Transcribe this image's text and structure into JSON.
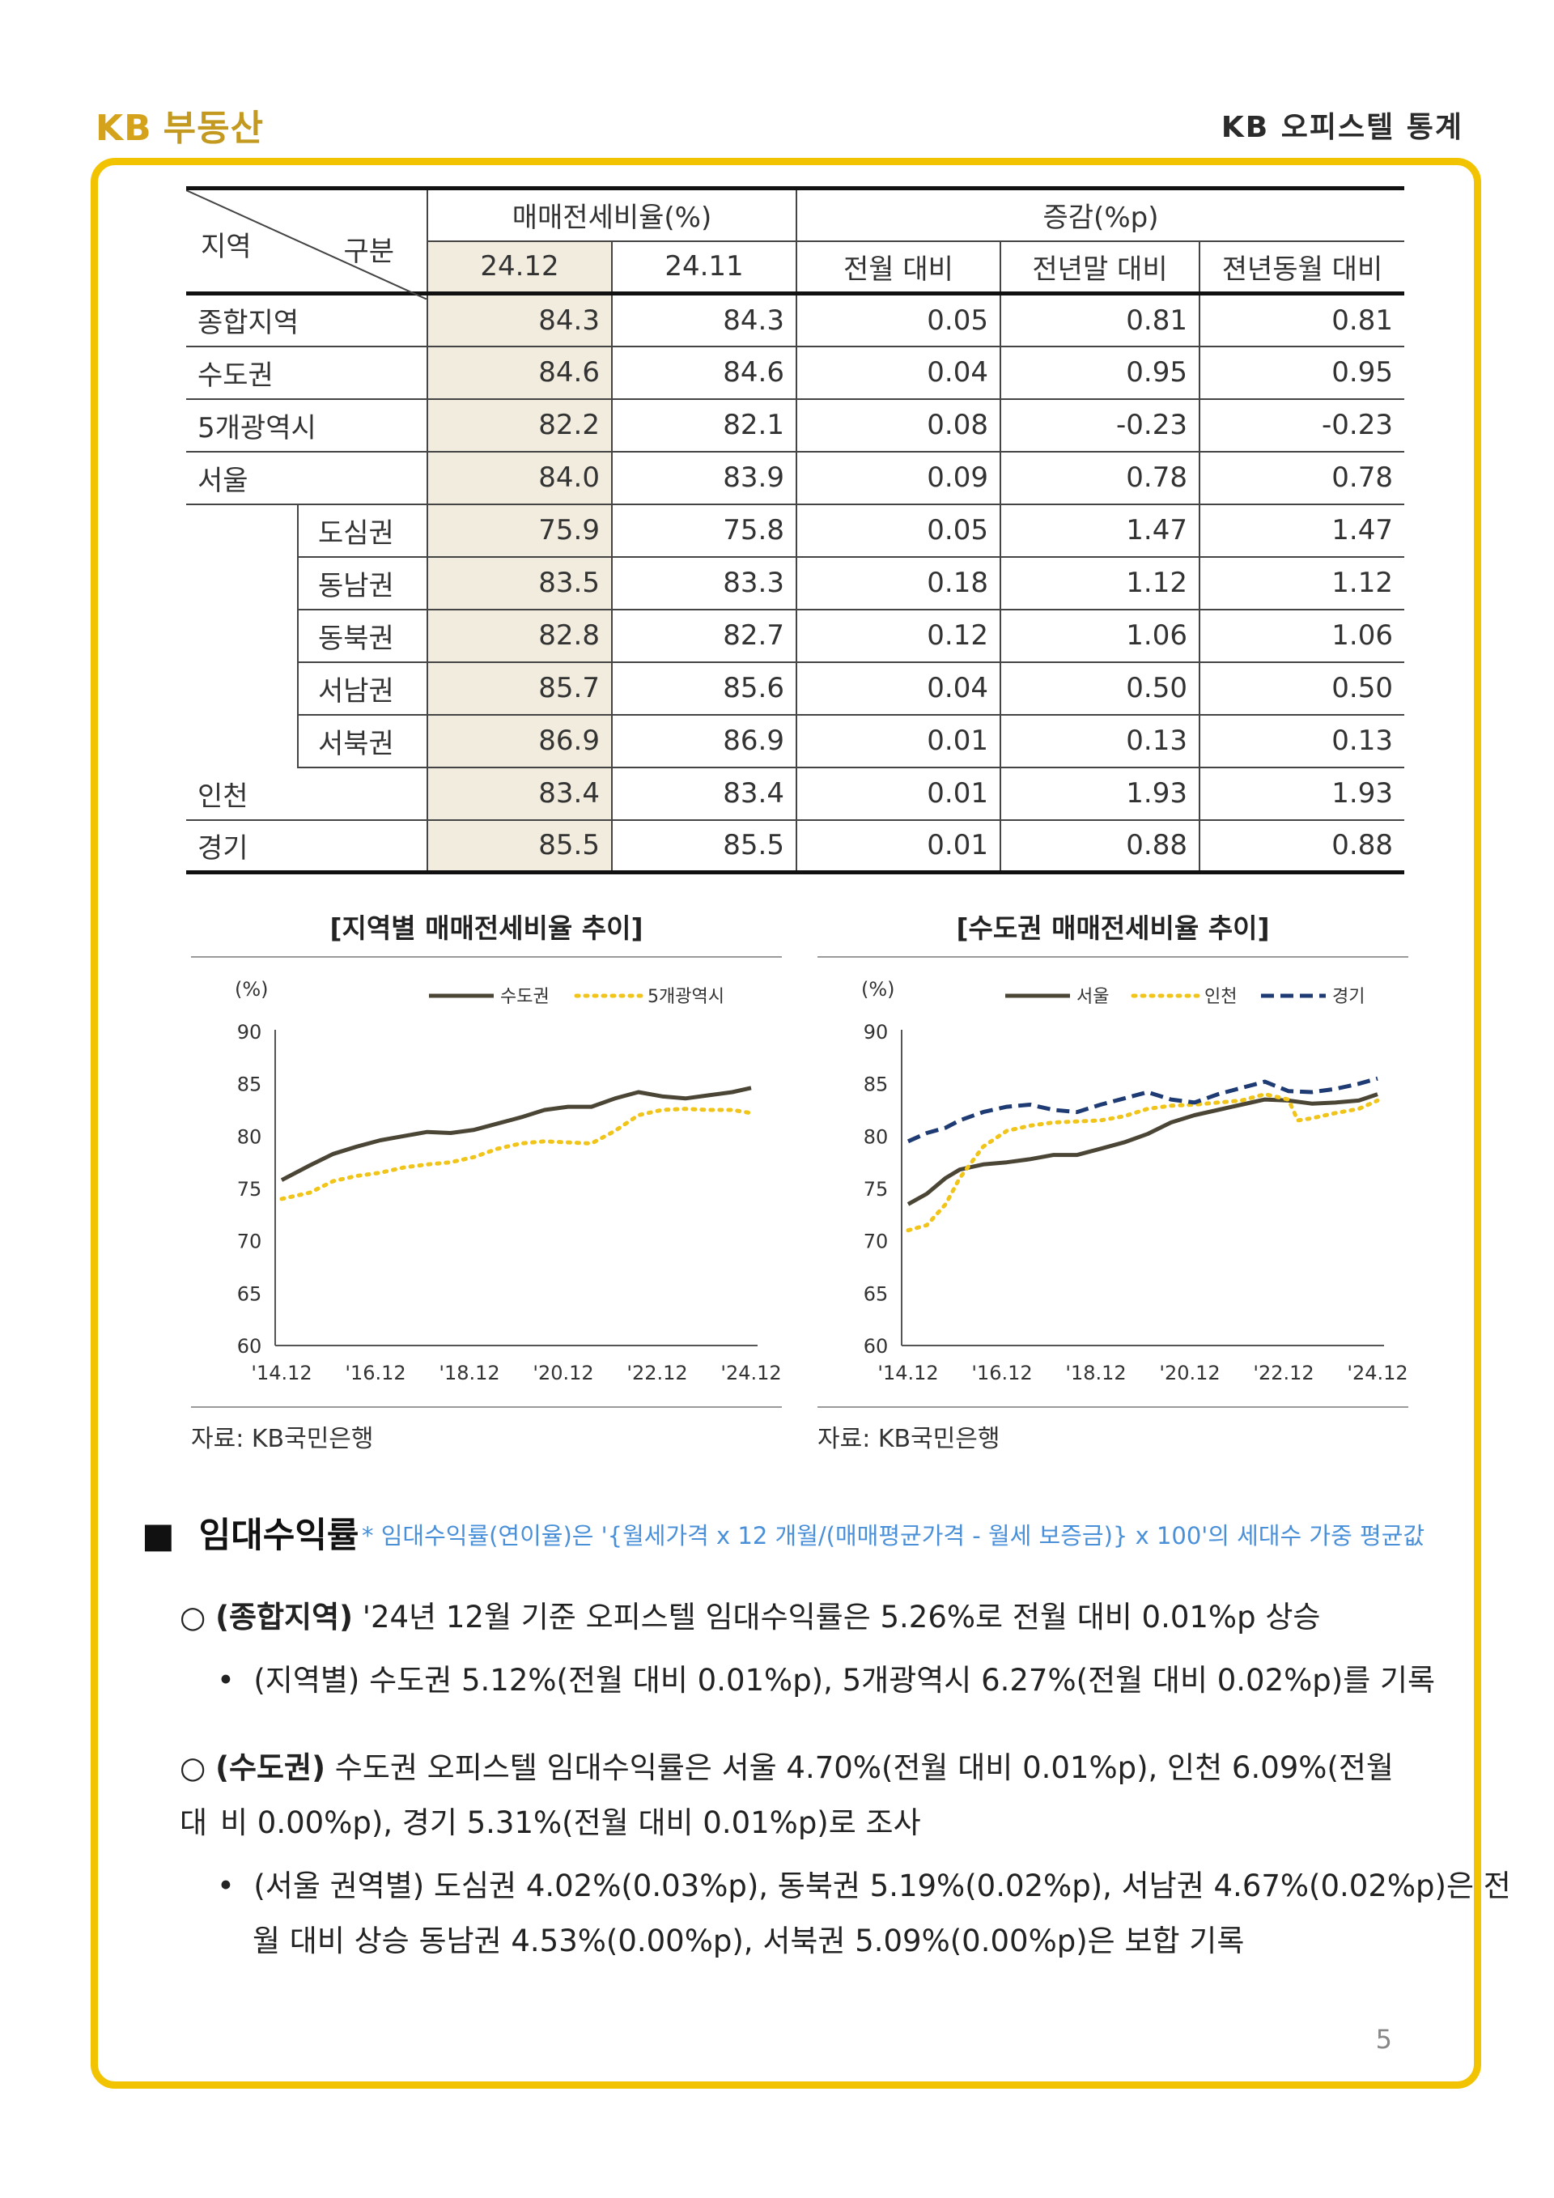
{
  "header": {
    "logo_kb": "KB",
    "logo_name": "부동산",
    "doc_title": "KB 오피스텔 통계"
  },
  "table": {
    "corner_region": "지역",
    "corner_category": "구분",
    "group1": "매매전세비율(%)",
    "group2": "증감(%p)",
    "cols": [
      "24.12",
      "24.11",
      "전월 대비",
      "전년말 대비",
      "젼년동월 대비"
    ],
    "rows": [
      {
        "region": "종합지역",
        "sub": "",
        "v": [
          "84.3",
          "84.3",
          "0.05",
          "0.81",
          "0.81"
        ]
      },
      {
        "region": "수도권",
        "sub": "",
        "v": [
          "84.6",
          "84.6",
          "0.04",
          "0.95",
          "0.95"
        ]
      },
      {
        "region": "5개광역시",
        "sub": "",
        "v": [
          "82.2",
          "82.1",
          "0.08",
          "-0.23",
          "-0.23"
        ]
      },
      {
        "region": "서울",
        "sub": "",
        "v": [
          "84.0",
          "83.9",
          "0.09",
          "0.78",
          "0.78"
        ]
      },
      {
        "region": "",
        "sub": "도심권",
        "v": [
          "75.9",
          "75.8",
          "0.05",
          "1.47",
          "1.47"
        ]
      },
      {
        "region": "",
        "sub": "동남권",
        "v": [
          "83.5",
          "83.3",
          "0.18",
          "1.12",
          "1.12"
        ]
      },
      {
        "region": "",
        "sub": "동북권",
        "v": [
          "82.8",
          "82.7",
          "0.12",
          "1.06",
          "1.06"
        ]
      },
      {
        "region": "",
        "sub": "서남권",
        "v": [
          "85.7",
          "85.6",
          "0.04",
          "0.50",
          "0.50"
        ]
      },
      {
        "region": "",
        "sub": "서북권",
        "v": [
          "86.9",
          "86.9",
          "0.01",
          "0.13",
          "0.13"
        ]
      },
      {
        "region": "인천",
        "sub": "",
        "v": [
          "83.4",
          "83.4",
          "0.01",
          "1.93",
          "1.93"
        ]
      },
      {
        "region": "경기",
        "sub": "",
        "v": [
          "85.5",
          "85.5",
          "0.01",
          "0.88",
          "0.88"
        ]
      }
    ]
  },
  "charts": {
    "left_title": "[지역별 매매전세비율 추이]",
    "right_title": "[수도권 매매전세비율 추이]",
    "source_left": "자료: KB국민은행",
    "source_right": "자료: KB국민은행"
  },
  "chart_data": [
    {
      "type": "line",
      "title": "[지역별 매매전세비율 추이]",
      "ylabel": "(%)",
      "ylim": [
        60,
        90
      ],
      "yticks": [
        "90",
        "85",
        "80",
        "75",
        "70",
        "65",
        "60"
      ],
      "xticks": [
        "'14.12",
        "'16.12",
        "'18.12",
        "'20.12",
        "'22.12",
        "'24.12"
      ],
      "legend": "top-right",
      "series": [
        {
          "name": "수도권",
          "color": "#4a4535",
          "dash": "solid",
          "x": [
            2014.9,
            2015.5,
            2016.0,
            2016.5,
            2017.0,
            2017.5,
            2018.0,
            2018.5,
            2019.0,
            2019.5,
            2020.0,
            2020.5,
            2021.0,
            2021.5,
            2022.0,
            2022.5,
            2023.0,
            2023.5,
            2024.0,
            2024.5,
            2024.9
          ],
          "y": [
            75.8,
            77.2,
            78.3,
            79.0,
            79.6,
            80.0,
            80.4,
            80.3,
            80.6,
            81.2,
            81.8,
            82.5,
            82.8,
            82.8,
            83.6,
            84.2,
            83.8,
            83.6,
            83.9,
            84.2,
            84.6
          ]
        },
        {
          "name": "5개광역시",
          "color": "#f0c419",
          "dash": "dotted",
          "x": [
            2014.9,
            2015.5,
            2016.0,
            2016.5,
            2017.0,
            2017.5,
            2018.0,
            2018.5,
            2019.0,
            2019.5,
            2020.0,
            2020.5,
            2021.0,
            2021.5,
            2022.0,
            2022.5,
            2023.0,
            2023.5,
            2024.0,
            2024.5,
            2024.9
          ],
          "y": [
            74.0,
            74.6,
            75.7,
            76.2,
            76.5,
            77.0,
            77.3,
            77.5,
            78.0,
            78.8,
            79.3,
            79.5,
            79.4,
            79.3,
            80.5,
            82.0,
            82.5,
            82.6,
            82.5,
            82.5,
            82.2
          ]
        }
      ]
    },
    {
      "type": "line",
      "title": "[수도권 매매전세비율 추이]",
      "ylabel": "(%)",
      "ylim": [
        60,
        90
      ],
      "yticks": [
        "90",
        "85",
        "80",
        "75",
        "70",
        "65",
        "60"
      ],
      "xticks": [
        "'14.12",
        "'16.12",
        "'18.12",
        "'20.12",
        "'22.12",
        "'24.12"
      ],
      "legend": "top-right",
      "series": [
        {
          "name": "서울",
          "color": "#4a4535",
          "dash": "solid",
          "x": [
            2014.9,
            2015.3,
            2015.7,
            2016.0,
            2016.5,
            2017.0,
            2017.5,
            2018.0,
            2018.5,
            2019.0,
            2019.5,
            2020.0,
            2020.5,
            2021.0,
            2021.5,
            2022.0,
            2022.5,
            2023.0,
            2023.5,
            2024.0,
            2024.5,
            2024.9
          ],
          "y": [
            73.5,
            74.5,
            76.0,
            76.8,
            77.3,
            77.5,
            77.8,
            78.2,
            78.2,
            78.8,
            79.4,
            80.2,
            81.3,
            82.0,
            82.5,
            83.0,
            83.5,
            83.4,
            83.1,
            83.2,
            83.4,
            84.0
          ]
        },
        {
          "name": "인천",
          "color": "#f0c419",
          "dash": "dotted",
          "x": [
            2014.9,
            2015.3,
            2015.7,
            2016.0,
            2016.5,
            2017.0,
            2017.5,
            2018.0,
            2018.5,
            2019.0,
            2019.5,
            2020.0,
            2020.5,
            2021.0,
            2021.5,
            2022.0,
            2022.5,
            2023.0,
            2023.2,
            2023.5,
            2024.0,
            2024.5,
            2024.9
          ],
          "y": [
            71.0,
            71.5,
            73.5,
            76.0,
            79.0,
            80.5,
            81.0,
            81.3,
            81.4,
            81.5,
            81.9,
            82.6,
            82.9,
            83.0,
            83.2,
            83.4,
            84.0,
            83.5,
            81.5,
            81.7,
            82.2,
            82.6,
            83.4
          ]
        },
        {
          "name": "경기",
          "color": "#1f3b73",
          "dash": "dashed",
          "x": [
            2014.9,
            2015.3,
            2015.7,
            2016.0,
            2016.5,
            2017.0,
            2017.5,
            2018.0,
            2018.5,
            2019.0,
            2019.5,
            2020.0,
            2020.5,
            2021.0,
            2021.5,
            2022.0,
            2022.5,
            2023.0,
            2023.5,
            2024.0,
            2024.5,
            2024.9
          ],
          "y": [
            79.5,
            80.3,
            80.8,
            81.5,
            82.3,
            82.8,
            83.0,
            82.5,
            82.3,
            83.0,
            83.6,
            84.2,
            83.5,
            83.2,
            84.0,
            84.6,
            85.2,
            84.3,
            84.2,
            84.5,
            85.0,
            85.5
          ]
        }
      ]
    }
  ],
  "section": {
    "marker": "■",
    "title": "임대수익률",
    "note": "* 임대수익률(연이율)은 '{월세가격 x 12 개월/(매매평균가격 - 월세 보증금)} x 100'의 세대수 가중 평균값",
    "p1_marker": "○",
    "p1_bold": "(종합지역)",
    "p1_text": " '24년 12월 기준 오피스텔 임대수익률은 5.26%로 전월 대비 0.01%p 상승",
    "b1_marker": "•",
    "b1_text": "(지역별) 수도권 5.12%(전월 대비 0.01%p), 5개광역시 6.27%(전월 대비 0.02%p)를 기록",
    "p2_marker": "○",
    "p2_bold": "(수도권)",
    "p2_text_line1": " 수도권 오피스텔 임대수익률은 서울 4.70%(전월 대비 0.01%p), 인천 6.09%(전월 대",
    "p2_text_line2": "비 0.00%p), 경기 5.31%(전월 대비 0.01%p)로 조사",
    "b2_marker": "•",
    "b2_text_line1": "(서울 권역별) 도심권 4.02%(0.03%p), 동북권 5.19%(0.02%p), 서남권 4.67%(0.02%p)은 전",
    "b2_text_line2": "월 대비 상승 동남권 4.53%(0.00%p), 서북권 5.09%(0.00%p)은 보합 기록"
  },
  "page_number": "5"
}
